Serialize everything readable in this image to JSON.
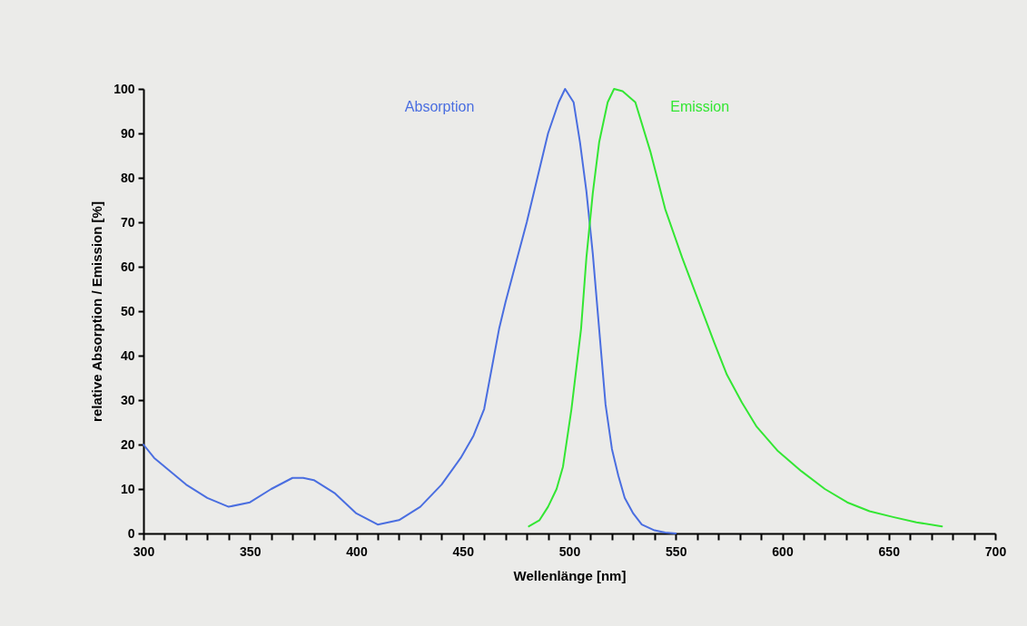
{
  "chart_data": {
    "type": "line",
    "xlabel": "Wellenlänge [nm]",
    "ylabel": "relative Absorption / Emission [%]",
    "xlim": [
      300,
      700
    ],
    "ylim": [
      0,
      100
    ],
    "xticks": [
      300,
      {
        "value": 310,
        "label": null
      },
      {
        "value": 320,
        "label": null
      },
      {
        "value": 330,
        "label": null
      },
      {
        "value": 340,
        "label": null
      },
      350,
      {
        "value": 360,
        "label": null
      },
      {
        "value": 370,
        "label": null
      },
      {
        "value": 380,
        "label": null
      },
      {
        "value": 390,
        "label": null
      },
      400,
      {
        "value": 410,
        "label": null
      },
      {
        "value": 420,
        "label": null
      },
      {
        "value": 430,
        "label": null
      },
      {
        "value": 440,
        "label": null
      },
      450,
      {
        "value": 460,
        "label": null
      },
      {
        "value": 470,
        "label": null
      },
      {
        "value": 480,
        "label": null
      },
      {
        "value": 490,
        "label": null
      },
      500,
      {
        "value": 510,
        "label": null
      },
      {
        "value": 520,
        "label": null
      },
      {
        "value": 530,
        "label": null
      },
      {
        "value": 540,
        "label": null
      },
      550,
      {
        "value": 560,
        "label": null
      },
      {
        "value": 570,
        "label": null
      },
      {
        "value": 580,
        "label": null
      },
      {
        "value": 590,
        "label": null
      },
      600,
      {
        "value": 610,
        "label": null
      },
      {
        "value": 620,
        "label": null
      },
      {
        "value": 630,
        "label": null
      },
      {
        "value": 640,
        "label": null
      },
      650,
      {
        "value": 660,
        "label": null
      },
      {
        "value": 670,
        "label": null
      },
      {
        "value": 680,
        "label": null
      },
      {
        "value": 690,
        "label": null
      },
      700
    ],
    "yticks": [
      0,
      10,
      20,
      30,
      40,
      50,
      60,
      70,
      80,
      90,
      100
    ],
    "grid": false,
    "marker": "none",
    "line_style": "solid",
    "series": [
      {
        "name": "Absorption",
        "color": "#4a6ee0",
        "x": [
          300,
          305,
          310,
          315,
          320,
          330,
          340,
          350,
          360,
          370,
          375,
          380,
          390,
          400,
          410,
          420,
          430,
          440,
          449,
          455,
          460,
          467,
          470,
          475,
          480,
          485,
          490,
          495,
          498,
          502,
          505,
          508,
          511,
          514,
          517,
          520,
          523,
          526,
          530,
          534,
          540,
          545,
          550
        ],
        "values": [
          20,
          17,
          15,
          13,
          11,
          8,
          6,
          7,
          10,
          12.5,
          12.5,
          12,
          9,
          4.5,
          2,
          3,
          6,
          11,
          17,
          22,
          28,
          46,
          52,
          61,
          70,
          80,
          90,
          97,
          100,
          97,
          88,
          77,
          63,
          46,
          29,
          19,
          13,
          8,
          4.5,
          2,
          0.7,
          0.2,
          0
        ]
      },
      {
        "name": "Emission",
        "color": "#33e633",
        "x": [
          481,
          486,
          490,
          494,
          497,
          501,
          505.5,
          508,
          511,
          514,
          518,
          521,
          525,
          531,
          538,
          545,
          553,
          562,
          568,
          574,
          581,
          588,
          598,
          609,
          620,
          630.5,
          641,
          652,
          663,
          675
        ],
        "values": [
          1.6,
          3,
          6,
          10,
          15,
          28,
          46,
          62,
          76.5,
          88,
          97,
          100,
          99.5,
          97,
          86,
          73,
          62,
          50.6,
          43,
          35.7,
          29.5,
          24,
          18.5,
          14,
          10,
          7,
          5,
          3.7,
          2.5,
          1.6
        ]
      }
    ]
  }
}
